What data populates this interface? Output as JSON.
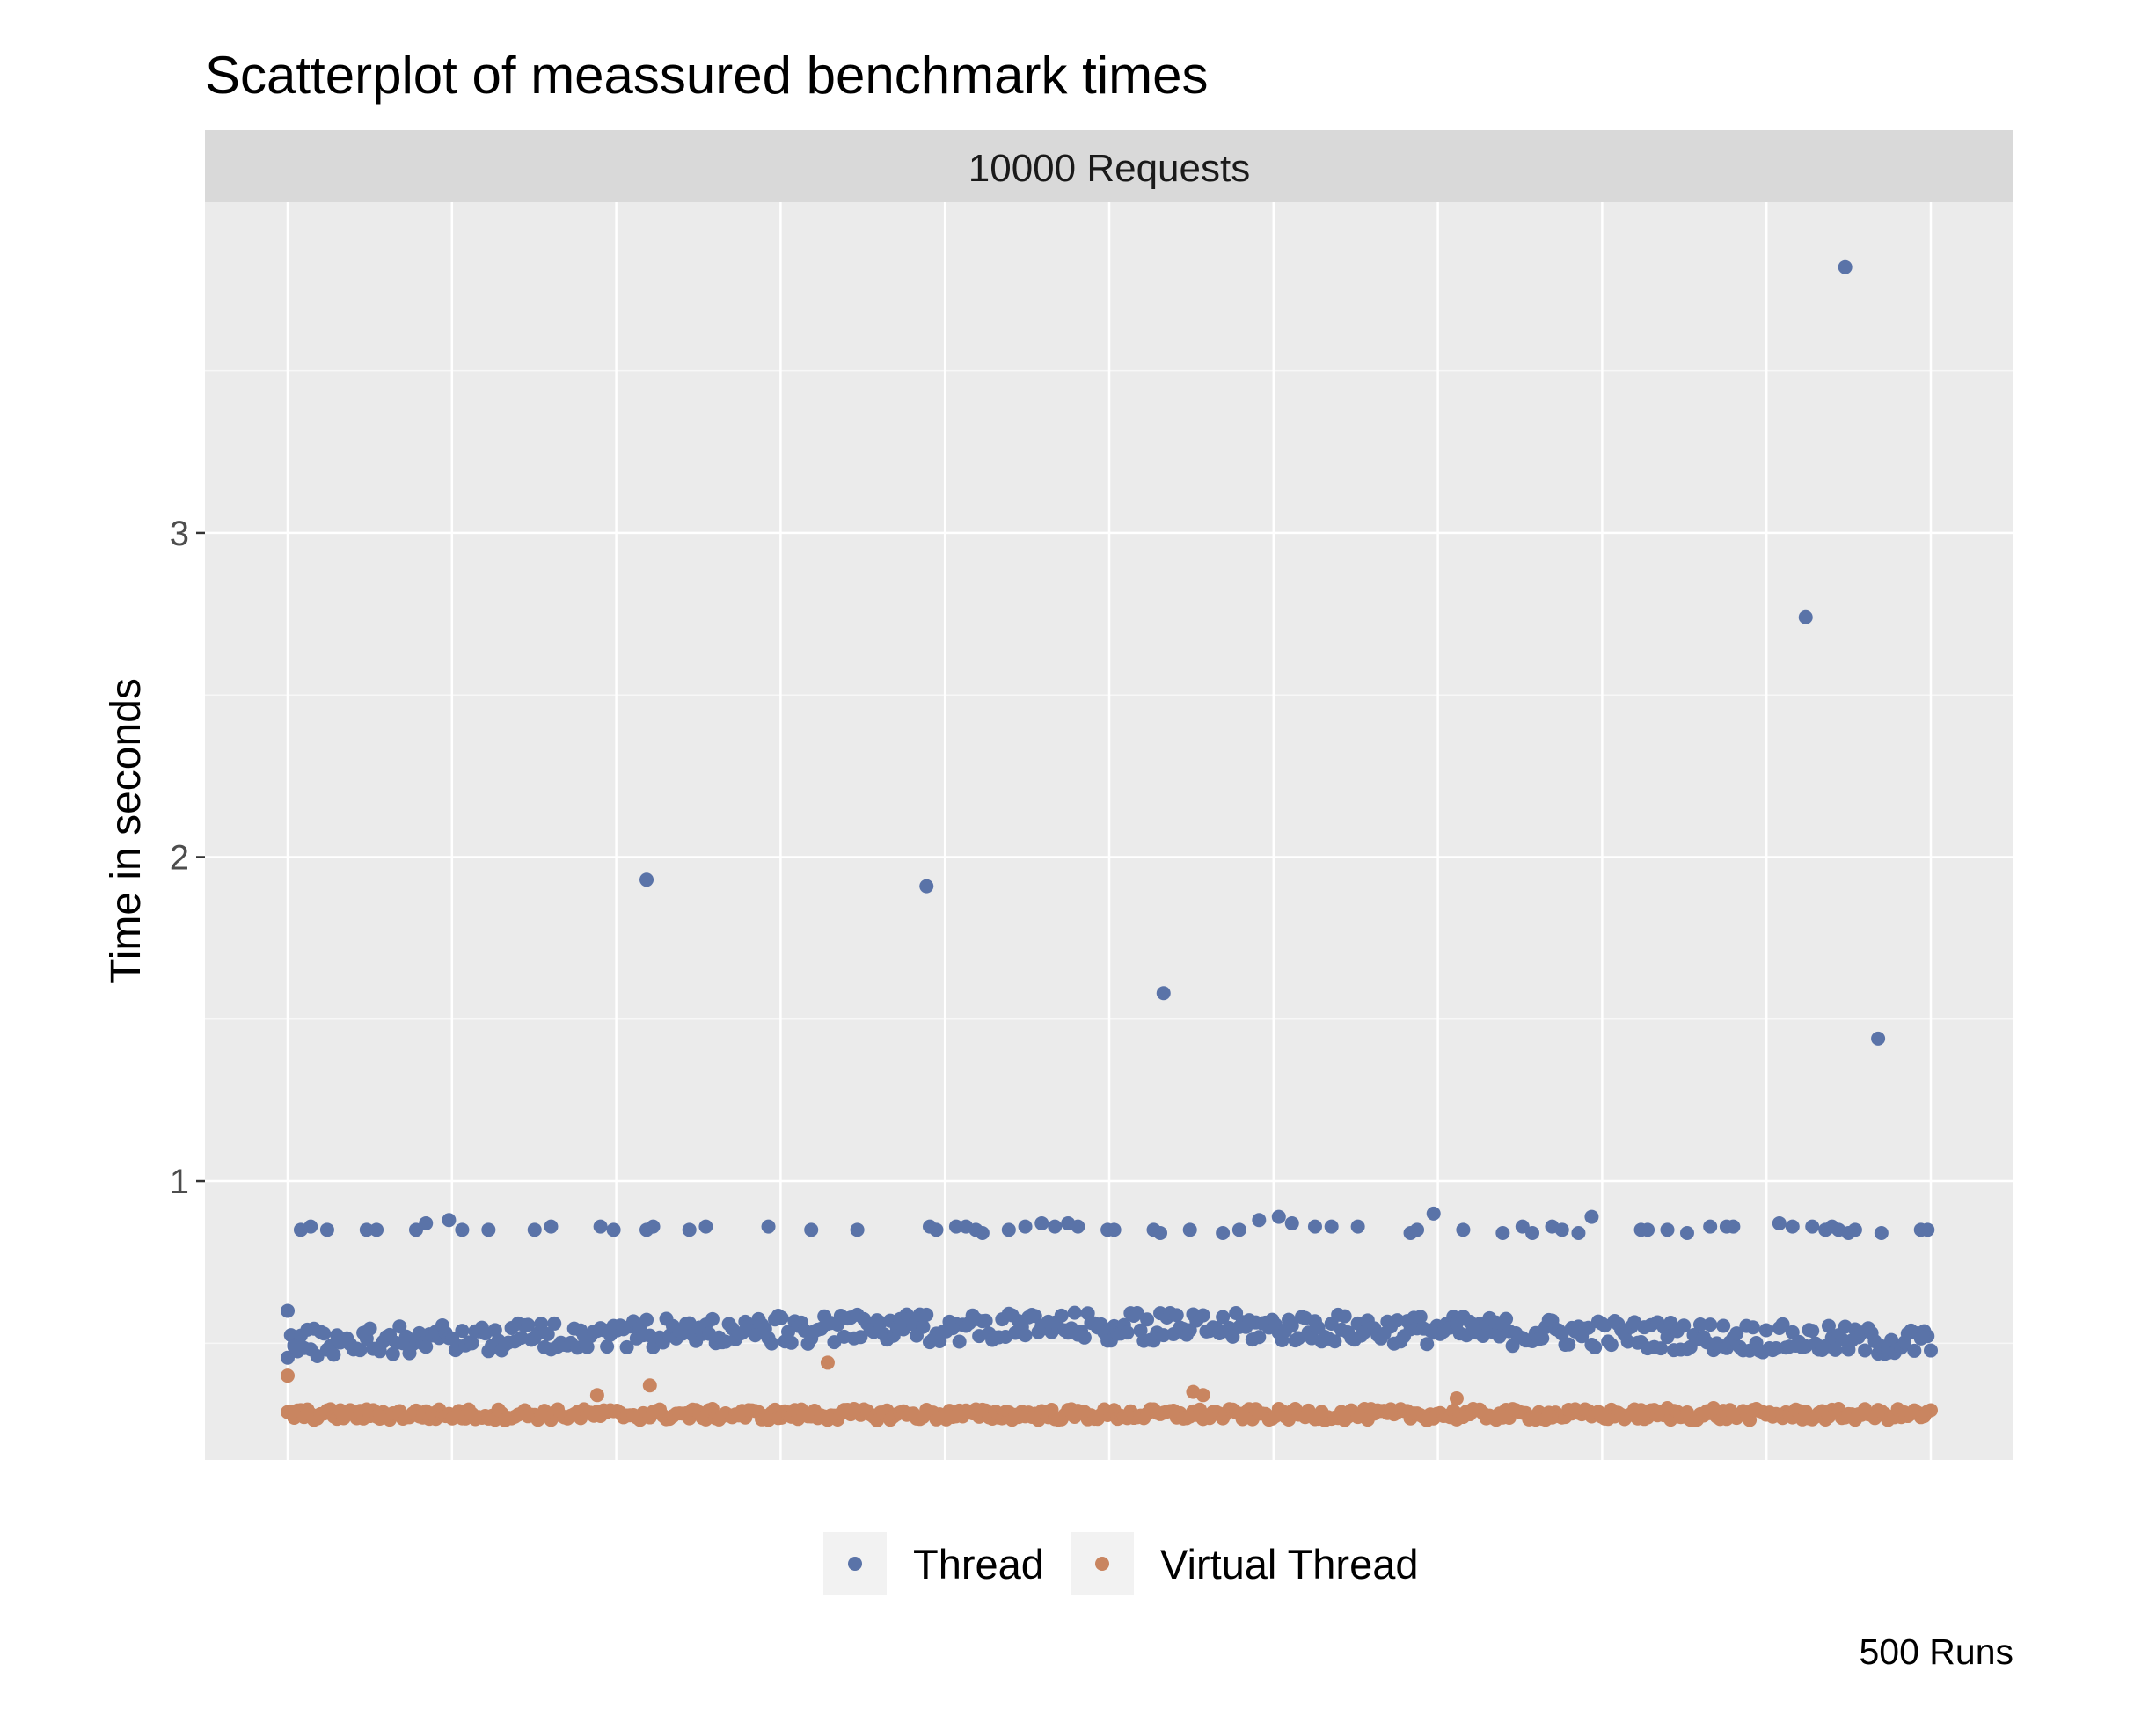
{
  "chart_data": {
    "type": "scatter",
    "title": "Scatterplot of meassured benchmark times",
    "facet_label": "10000 Requests",
    "xlabel": "",
    "ylabel": "Time in seconds",
    "caption": "500 Runs",
    "xlim": [
      1,
      500
    ],
    "ylim": [
      0.14,
      4.02
    ],
    "y_ticks": [
      1,
      2,
      3
    ],
    "x_tick_labels": "none",
    "grid": true,
    "legend_position": "bottom",
    "series": [
      {
        "name": "Thread",
        "color": "#5a73a8",
        "baseline": 0.5,
        "x": [
          1,
          110,
          195,
          267,
          462,
          474,
          484,
          3,
          5,
          8,
          13,
          25,
          28,
          40,
          43,
          50,
          54,
          62,
          76,
          81,
          96,
          100,
          110,
          112,
          123,
          128,
          147,
          160,
          174,
          196,
          198,
          204,
          207,
          210,
          212,
          220,
          225,
          230,
          234,
          238,
          241,
          250,
          252,
          264,
          266,
          275,
          285,
          290,
          296,
          302,
          306,
          313,
          318,
          326,
          342,
          344,
          349,
          358,
          370,
          376,
          379,
          385,
          388,
          393,
          397,
          412,
          414,
          420,
          426,
          433,
          438,
          440,
          454,
          458,
          464,
          468,
          470,
          472,
          475,
          477,
          485,
          497,
          499
        ],
        "y": [
          0.6,
          1.93,
          1.91,
          1.58,
          2.74,
          3.82,
          1.44,
          0.49,
          0.85,
          0.86,
          0.85,
          0.85,
          0.85,
          0.85,
          0.87,
          0.88,
          0.85,
          0.85,
          0.85,
          0.86,
          0.86,
          0.85,
          0.85,
          0.86,
          0.85,
          0.86,
          0.86,
          0.85,
          0.85,
          0.86,
          0.85,
          0.86,
          0.86,
          0.85,
          0.84,
          0.85,
          0.86,
          0.87,
          0.86,
          0.87,
          0.86,
          0.85,
          0.85,
          0.85,
          0.84,
          0.85,
          0.84,
          0.85,
          0.88,
          0.89,
          0.87,
          0.86,
          0.86,
          0.86,
          0.84,
          0.85,
          0.9,
          0.85,
          0.84,
          0.86,
          0.84,
          0.86,
          0.85,
          0.84,
          0.89,
          0.85,
          0.85,
          0.85,
          0.84,
          0.86,
          0.86,
          0.86,
          0.87,
          0.86,
          0.86,
          0.85,
          0.86,
          0.85,
          0.84,
          0.85,
          0.84,
          0.85,
          0.85
        ]
      },
      {
        "name": "Virtual Thread",
        "color": "#c98560",
        "baseline": 0.28,
        "x": [
          1,
          95,
          111,
          165,
          276,
          279,
          356,
          420,
          434
        ],
        "y": [
          0.4,
          0.34,
          0.37,
          0.44,
          0.35,
          0.34,
          0.33,
          0.3,
          0.3
        ]
      }
    ]
  }
}
